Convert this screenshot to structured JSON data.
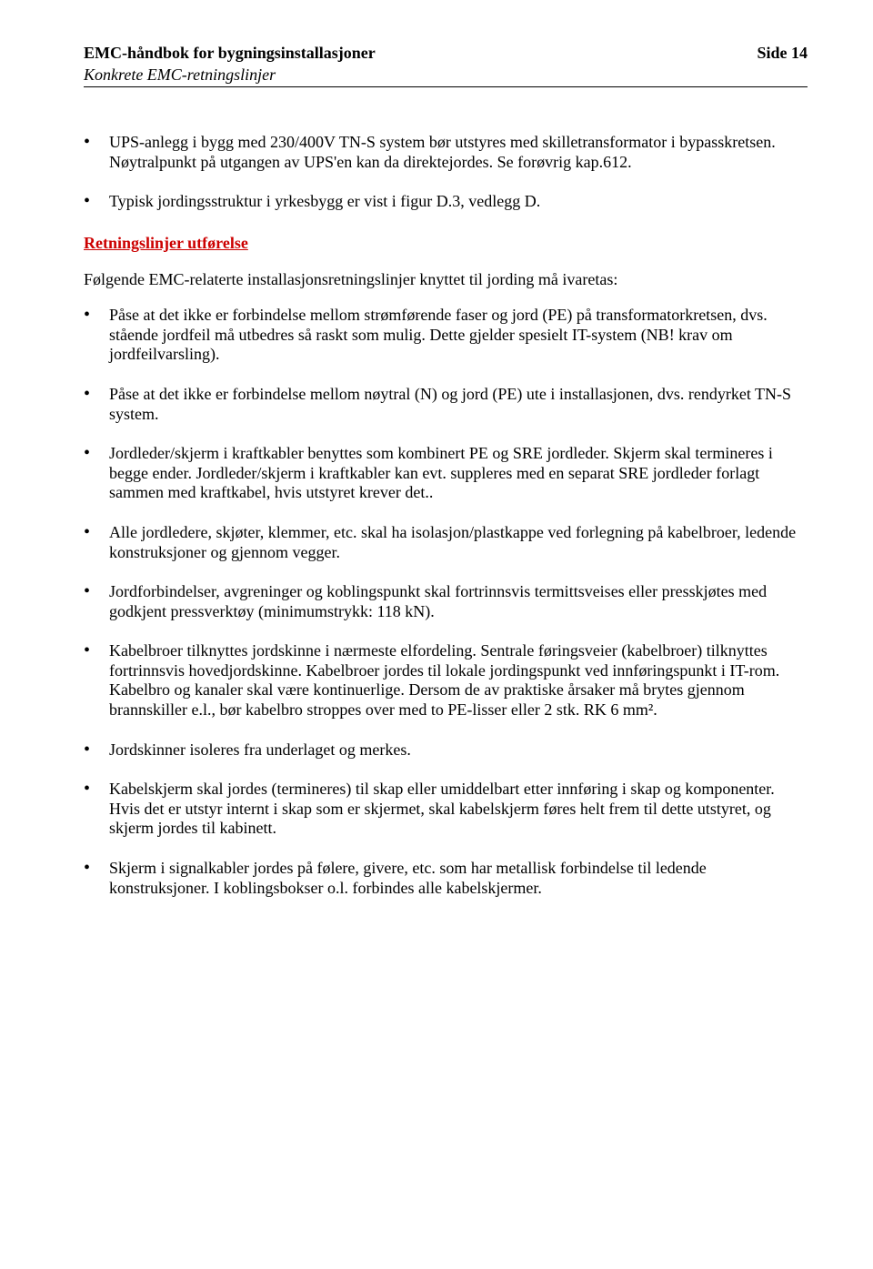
{
  "header": {
    "title_left": "EMC-håndbok for bygningsinstallasjoner",
    "title_right": "Side 14",
    "subtitle": "Konkrete EMC-retningslinjer"
  },
  "top_bullets": [
    "UPS-anlegg i bygg med 230/400V TN-S system bør utstyres med skilletransformator i bypasskretsen. Nøytralpunkt på utgangen av UPS'en kan da direktejordes. Se forøvrig kap.612.",
    "Typisk jordingsstruktur i yrkesbygg er vist i figur D.3, vedlegg D."
  ],
  "section_heading": "Retningslinjer utførelse",
  "intro": "Følgende EMC-relaterte installasjonsretningslinjer knyttet til jording må ivaretas:",
  "main_bullets": [
    "Påse at det ikke er forbindelse mellom strømførende faser og jord (PE) på transformatorkretsen, dvs. stående jordfeil må utbedres så raskt som mulig. Dette gjelder spesielt IT-system (NB! krav om jordfeilvarsling).",
    "Påse at det ikke er forbindelse mellom nøytral (N) og jord (PE) ute i installasjonen, dvs. rendyrket TN-S system.",
    "Jordleder/skjerm i kraftkabler benyttes som kombinert PE og SRE jordleder. Skjerm skal termineres i begge ender. Jordleder/skjerm i kraftkabler kan evt. suppleres med en separat SRE jordleder forlagt sammen med kraftkabel, hvis utstyret krever det..",
    "Alle jordledere, skjøter, klemmer, etc. skal ha isolasjon/plastkappe ved forlegning på kabelbroer, ledende konstruksjoner og gjennom vegger.",
    "Jordforbindelser, avgreninger og koblingspunkt skal fortrinnsvis termittsveises eller presskjøtes med godkjent pressverktøy (minimumstrykk: 118 kN).",
    "Kabelbroer tilknyttes jordskinne i nærmeste elfordeling. Sentrale føringsveier (kabelbroer) tilknyttes fortrinnsvis hovedjordskinne. Kabelbroer jordes til lokale jordingspunkt ved innføringspunkt i IT-rom. Kabelbro og kanaler skal være kontinuerlige. Dersom de av praktiske årsaker må brytes gjennom brannskiller e.l., bør kabelbro stroppes over med to PE-lisser eller 2 stk. RK 6 mm².",
    "Jordskinner isoleres fra underlaget og merkes.",
    "Kabelskjerm skal jordes (termineres) til skap eller umiddelbart etter innføring i skap og komponenter. Hvis det er utstyr internt i skap som er skjermet, skal kabelskjerm føres helt frem til dette utstyret, og skjerm jordes til kabinett.",
    "Skjerm i signalkabler jordes på følere, givere, etc. som har metallisk forbindelse til ledende konstruksjoner. I koblingsbokser o.l. forbindes alle kabelskjermer."
  ],
  "colors": {
    "heading_red": "#cc0000",
    "text": "#000000",
    "background": "#ffffff"
  },
  "typography": {
    "font_family": "Times New Roman",
    "body_fontsize_pt": 13,
    "heading_bold": true
  }
}
